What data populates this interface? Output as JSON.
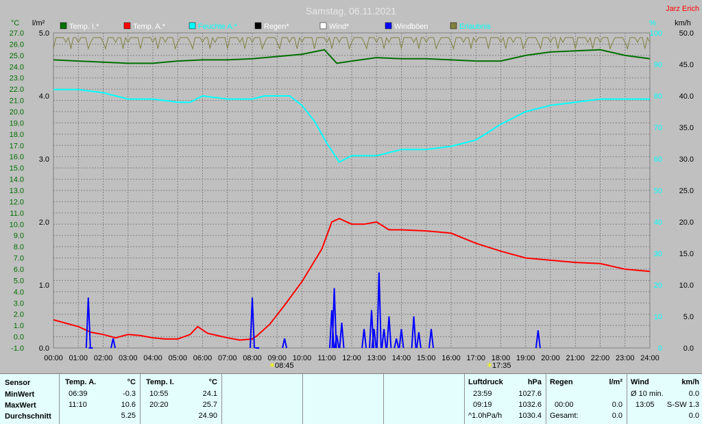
{
  "title": "Samstag, 06.11.2021",
  "author": "Jarz Erich",
  "units": {
    "left1": "°C",
    "left2": "l/m²",
    "right1": "%",
    "right2": "km/h"
  },
  "legend": [
    {
      "label": "Temp. I.*",
      "color": "#006e00",
      "text_color": "#ffffff"
    },
    {
      "label": "Temp. A.*",
      "color": "#ff0000",
      "text_color": "#ffffff"
    },
    {
      "label": "Feuchte A.*",
      "color": "#00ffff",
      "text_color": "#00ffff"
    },
    {
      "label": "Regen*",
      "color": "#000000",
      "text_color": "#ffffff"
    },
    {
      "label": "Wind*",
      "color": "#ffffff",
      "text_color": "#ffffff"
    },
    {
      "label": "Windböen",
      "color": "#0000ff",
      "text_color": "#ffffff"
    },
    {
      "label": "Erlaubnis",
      "color": "#808040",
      "text_color": "#00ffff"
    }
  ],
  "sun": {
    "rise": "08:45",
    "set": "17:35"
  },
  "chart_data": {
    "type": "line",
    "x_ticks": [
      "00:00",
      "01:00",
      "02:00",
      "03:00",
      "04:00",
      "05:00",
      "06:00",
      "07:00",
      "08:00",
      "09:00",
      "10:00",
      "11:00",
      "12:00",
      "13:00",
      "14:00",
      "15:00",
      "16:00",
      "17:00",
      "18:00",
      "19:00",
      "20:00",
      "21:00",
      "22:00",
      "23:00",
      "24:00"
    ],
    "temp_ticks": [
      "27.0",
      "26.0",
      "25.0",
      "24.0",
      "23.0",
      "22.0",
      "21.0",
      "20.0",
      "19.0",
      "18.0",
      "17.0",
      "16.0",
      "15.0",
      "14.0",
      "13.0",
      "12.0",
      "11.0",
      "10.0",
      "9.0",
      "8.0",
      "7.0",
      "6.0",
      "5.0",
      "4.0",
      "3.0",
      "2.0",
      "1.0",
      "0.0",
      "-1.0"
    ],
    "rain_ticks": [
      "5.0",
      "4.0",
      "3.0",
      "2.0",
      "1.0",
      "0.0"
    ],
    "humidity_ticks": [
      "100",
      "90",
      "80",
      "70",
      "60",
      "50",
      "40",
      "30",
      "20",
      "10",
      "0"
    ],
    "wind_ticks": [
      "50.0",
      "45.0",
      "40.0",
      "35.0",
      "30.0",
      "25.0",
      "20.0",
      "15.0",
      "10.0",
      "5.0",
      "0.0"
    ],
    "temp_range": [
      -1,
      27
    ],
    "humidity_range": [
      0,
      100
    ],
    "wind_range": [
      0,
      50
    ],
    "series": [
      {
        "name": "Temp. I.*",
        "color": "#006e00",
        "x": [
          0,
          1,
          2,
          3,
          4,
          5,
          6,
          7,
          8,
          9,
          10,
          10.9,
          11.4,
          12,
          13,
          14,
          15,
          16,
          17,
          18,
          19,
          20,
          21,
          22,
          23,
          24
        ],
        "y": [
          24.6,
          24.5,
          24.4,
          24.3,
          24.3,
          24.5,
          24.6,
          24.6,
          24.7,
          24.9,
          25.1,
          25.5,
          24.3,
          24.5,
          24.8,
          24.7,
          24.7,
          24.6,
          24.5,
          24.5,
          25.0,
          25.3,
          25.4,
          25.5,
          25.0,
          24.7
        ]
      },
      {
        "name": "Temp. A.*",
        "color": "#ff0000",
        "x": [
          0,
          0.5,
          1,
          1.5,
          2,
          2.5,
          3,
          3.5,
          4,
          4.5,
          5,
          5.5,
          5.8,
          6.2,
          6.6,
          7,
          7.5,
          8,
          8.2,
          8.7,
          9.3,
          10,
          10.8,
          11.2,
          11.5,
          12,
          12.5,
          13,
          13.5,
          14,
          15,
          16,
          17,
          18,
          19,
          20,
          21,
          22,
          23,
          24
        ],
        "y": [
          1.5,
          1.2,
          0.9,
          0.4,
          0.2,
          -0.1,
          0.2,
          0.1,
          -0.1,
          -0.2,
          -0.2,
          0.2,
          0.9,
          0.3,
          0.1,
          -0.1,
          -0.3,
          -0.2,
          0.1,
          1.1,
          2.8,
          4.9,
          7.8,
          10.2,
          10.5,
          10.0,
          10.0,
          10.2,
          9.5,
          9.5,
          9.4,
          9.2,
          8.3,
          7.6,
          7.0,
          6.8,
          6.6,
          6.5,
          6.0,
          5.8
        ]
      },
      {
        "name": "Feuchte A.*",
        "color": "#00ffff",
        "x": [
          0,
          1,
          2,
          3,
          4,
          5,
          5.5,
          6,
          7,
          8,
          8.5,
          9,
          9.5,
          10,
          10.5,
          11,
          11.5,
          12,
          13,
          13.5,
          14,
          15,
          16,
          17,
          18,
          19,
          20,
          21,
          22,
          23,
          24
        ],
        "y": [
          82,
          82,
          81,
          79,
          79,
          78,
          78,
          80,
          79,
          79,
          80,
          80,
          80,
          77,
          72,
          65,
          59,
          61,
          61,
          62,
          63,
          63,
          64,
          66,
          71,
          75,
          77,
          78,
          79,
          79,
          79
        ]
      },
      {
        "name": "Windböen",
        "color": "#0000ff",
        "x": [
          1.4,
          1.5,
          2.4,
          8,
          8.2,
          9.3,
          11.2,
          11.3,
          11.4,
          11.6,
          12.5,
          12.8,
          12.9,
          13.1,
          13.3,
          13.5,
          13.8,
          14.0,
          14.5,
          14.7,
          15.2,
          19.5
        ],
        "y": [
          8,
          0,
          1.5,
          8,
          0,
          1.5,
          6,
          9.5,
          2,
          4,
          3,
          6,
          3,
          12,
          3,
          5,
          1.5,
          3,
          5,
          2.5,
          3,
          2.8
        ]
      }
    ],
    "wind_avg_visible": [
      0,
      0.5,
      0.5,
      0.4,
      0.4,
      0
    ]
  },
  "table": {
    "sensor": {
      "header": "Sensor",
      "rows": [
        "MinWert",
        "MaxWert",
        "Durchschnitt"
      ]
    },
    "temp_a": {
      "header": "Temp. A.",
      "unit": "°C",
      "rows": [
        [
          "06:39",
          "-0.3"
        ],
        [
          "11:10",
          "10.6"
        ],
        [
          "",
          "5.25"
        ]
      ]
    },
    "temp_i": {
      "header": "Temp. I.",
      "unit": "°C",
      "rows": [
        [
          "10:55",
          "24.1"
        ],
        [
          "20:20",
          "25.7"
        ],
        [
          "",
          "24.90"
        ]
      ]
    },
    "pressure": {
      "header": "Luftdruck",
      "unit": "hPa",
      "rows": [
        [
          "23:59",
          "1027.6"
        ],
        [
          "09:19",
          "1032.6"
        ],
        [
          "^1.0hPa/h",
          "1030.4"
        ]
      ]
    },
    "rain": {
      "header": "Regen",
      "unit": "l/m²",
      "rows": [
        [
          "",
          ""
        ],
        [
          "00:00",
          "0.0"
        ],
        [
          "Gesamt:",
          "0.0"
        ]
      ]
    },
    "wind": {
      "header": "Wind",
      "unit": "km/h",
      "rows": [
        [
          "Ø 10 min.",
          "0.0"
        ],
        [
          "13:05",
          "S-SW 1.3"
        ],
        [
          "",
          "0.0"
        ]
      ]
    }
  }
}
